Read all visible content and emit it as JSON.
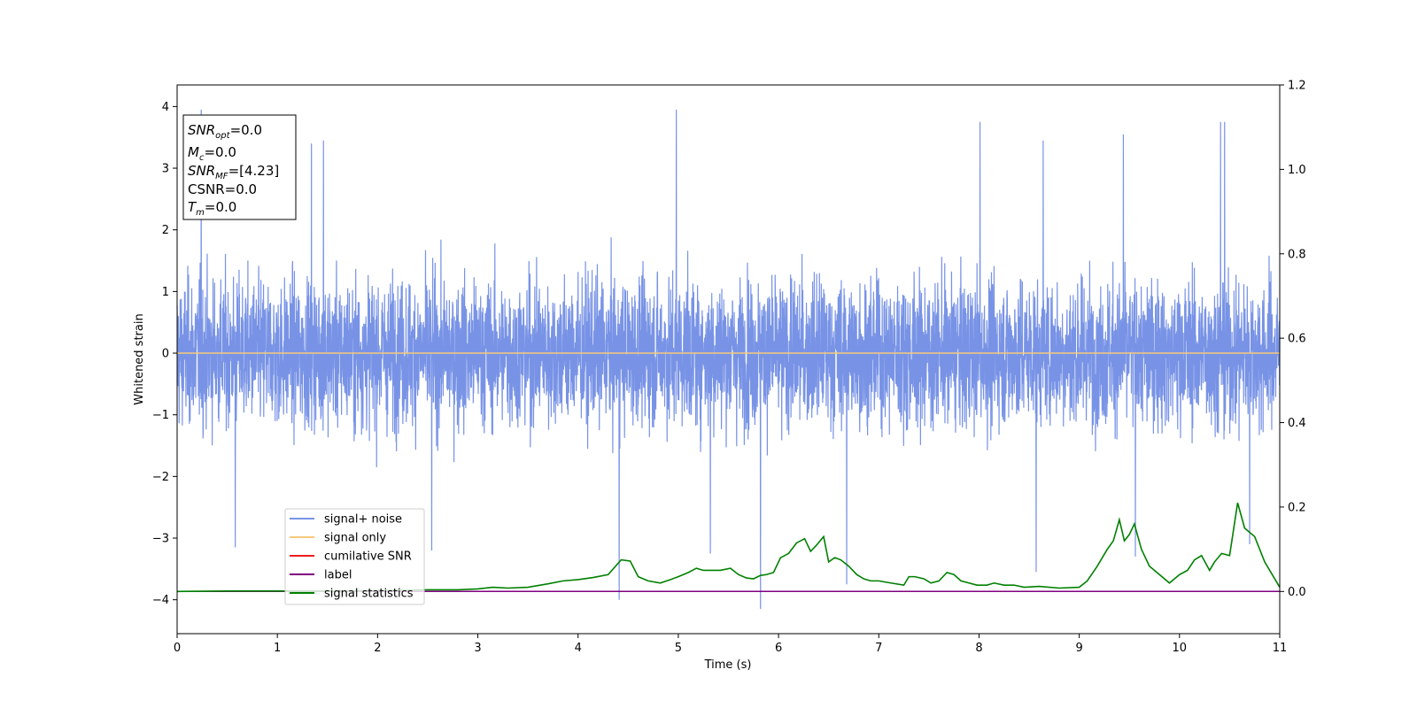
{
  "chart_data": {
    "type": "line",
    "title": "",
    "xlabel": "Time (s)",
    "ylabel": "Whitened strain",
    "xlim": [
      0,
      11
    ],
    "ylim": [
      -4.55,
      4.35
    ],
    "y2lim": [
      -0.1,
      1.2
    ],
    "grid": false,
    "legend_position": "lower-left",
    "x_ticks": [
      0,
      1,
      2,
      3,
      4,
      5,
      6,
      7,
      8,
      9,
      10,
      11
    ],
    "y_ticks": [
      -4,
      -3,
      -2,
      -1,
      0,
      1,
      2,
      3,
      4
    ],
    "y2_ticks": [
      0.0,
      0.2,
      0.4,
      0.6,
      0.8,
      1.0,
      1.2
    ],
    "annotation": {
      "lines": [
        {
          "main": "SNR",
          "sub": "opt",
          "rest": "=0.0"
        },
        {
          "main": "M",
          "sub": "c",
          "rest": "=0.0"
        },
        {
          "main": "SNR",
          "sub": "MF",
          "rest": "=[4.23]"
        },
        {
          "main": "CSNR",
          "sub": "",
          "rest": "=0.0"
        },
        {
          "main": "T",
          "sub": "m",
          "rest": "=0.0"
        }
      ]
    },
    "series": [
      {
        "name": "signal+ noise",
        "color": "#7893e6",
        "axis": "left",
        "description": "whitened noise, approx zero-mean, range about -4.2 to 4.0",
        "envelope_positive_peaks": [
          [
            0.24,
            3.95
          ],
          [
            1.34,
            3.4
          ],
          [
            1.46,
            3.45
          ],
          [
            4.98,
            3.95
          ],
          [
            8.01,
            3.75
          ],
          [
            8.64,
            3.45
          ],
          [
            9.44,
            3.55
          ],
          [
            10.41,
            3.75
          ],
          [
            10.45,
            3.75
          ]
        ],
        "envelope_negative_peaks": [
          [
            0.58,
            -3.15
          ],
          [
            2.54,
            -3.2
          ],
          [
            4.41,
            -4.0
          ],
          [
            5.32,
            -3.25
          ],
          [
            5.82,
            -4.15
          ],
          [
            6.68,
            -3.75
          ],
          [
            8.57,
            -3.55
          ],
          [
            9.56,
            -3.3
          ],
          [
            10.7,
            -3.1
          ]
        ]
      },
      {
        "name": "signal only",
        "color": "#f5c97a",
        "axis": "left",
        "x": [
          0,
          11
        ],
        "values": [
          0,
          0
        ]
      },
      {
        "name": "cumilative SNR",
        "color": "#ee1c1c",
        "axis": "right",
        "x": [
          0,
          11
        ],
        "values": [
          0,
          0
        ]
      },
      {
        "name": "label",
        "color": "#800080",
        "axis": "right",
        "x": [
          0,
          11
        ],
        "values": [
          0,
          0
        ]
      },
      {
        "name": "signal statistics",
        "color": "#008000",
        "axis": "right",
        "x": [
          0,
          0.5,
          1,
          1.5,
          2,
          2.5,
          2.8,
          3.0,
          3.15,
          3.3,
          3.5,
          3.7,
          3.85,
          4.0,
          4.15,
          4.3,
          4.43,
          4.52,
          4.6,
          4.7,
          4.82,
          4.92,
          5.0,
          5.1,
          5.18,
          5.25,
          5.32,
          5.42,
          5.52,
          5.6,
          5.68,
          5.75,
          5.82,
          5.88,
          5.95,
          6.02,
          6.1,
          6.18,
          6.26,
          6.32,
          6.38,
          6.45,
          6.5,
          6.56,
          6.62,
          6.7,
          6.78,
          6.85,
          6.92,
          7.0,
          7.12,
          7.25,
          7.3,
          7.36,
          7.45,
          7.52,
          7.6,
          7.68,
          7.75,
          7.82,
          7.9,
          7.98,
          8.08,
          8.15,
          8.25,
          8.35,
          8.45,
          8.6,
          8.8,
          9.0,
          9.08,
          9.18,
          9.28,
          9.34,
          9.4,
          9.45,
          9.5,
          9.55,
          9.62,
          9.7,
          9.8,
          9.9,
          10.0,
          10.08,
          10.15,
          10.22,
          10.3,
          10.35,
          10.42,
          10.5,
          10.58,
          10.65,
          10.75,
          10.85,
          11.0
        ],
        "values": [
          0.0,
          0.001,
          0.001,
          0.001,
          0.002,
          0.004,
          0.004,
          0.006,
          0.01,
          0.008,
          0.01,
          0.018,
          0.025,
          0.028,
          0.033,
          0.04,
          0.075,
          0.072,
          0.035,
          0.025,
          0.02,
          0.028,
          0.035,
          0.045,
          0.055,
          0.05,
          0.05,
          0.05,
          0.055,
          0.04,
          0.032,
          0.03,
          0.038,
          0.04,
          0.045,
          0.08,
          0.09,
          0.115,
          0.125,
          0.095,
          0.11,
          0.13,
          0.07,
          0.08,
          0.075,
          0.06,
          0.04,
          0.03,
          0.025,
          0.025,
          0.02,
          0.015,
          0.035,
          0.035,
          0.03,
          0.02,
          0.025,
          0.045,
          0.04,
          0.025,
          0.02,
          0.015,
          0.015,
          0.02,
          0.015,
          0.015,
          0.01,
          0.012,
          0.008,
          0.01,
          0.025,
          0.06,
          0.1,
          0.12,
          0.17,
          0.12,
          0.135,
          0.16,
          0.1,
          0.06,
          0.04,
          0.02,
          0.04,
          0.05,
          0.075,
          0.085,
          0.05,
          0.07,
          0.09,
          0.085,
          0.21,
          0.15,
          0.13,
          0.07,
          0.01
        ]
      }
    ]
  }
}
